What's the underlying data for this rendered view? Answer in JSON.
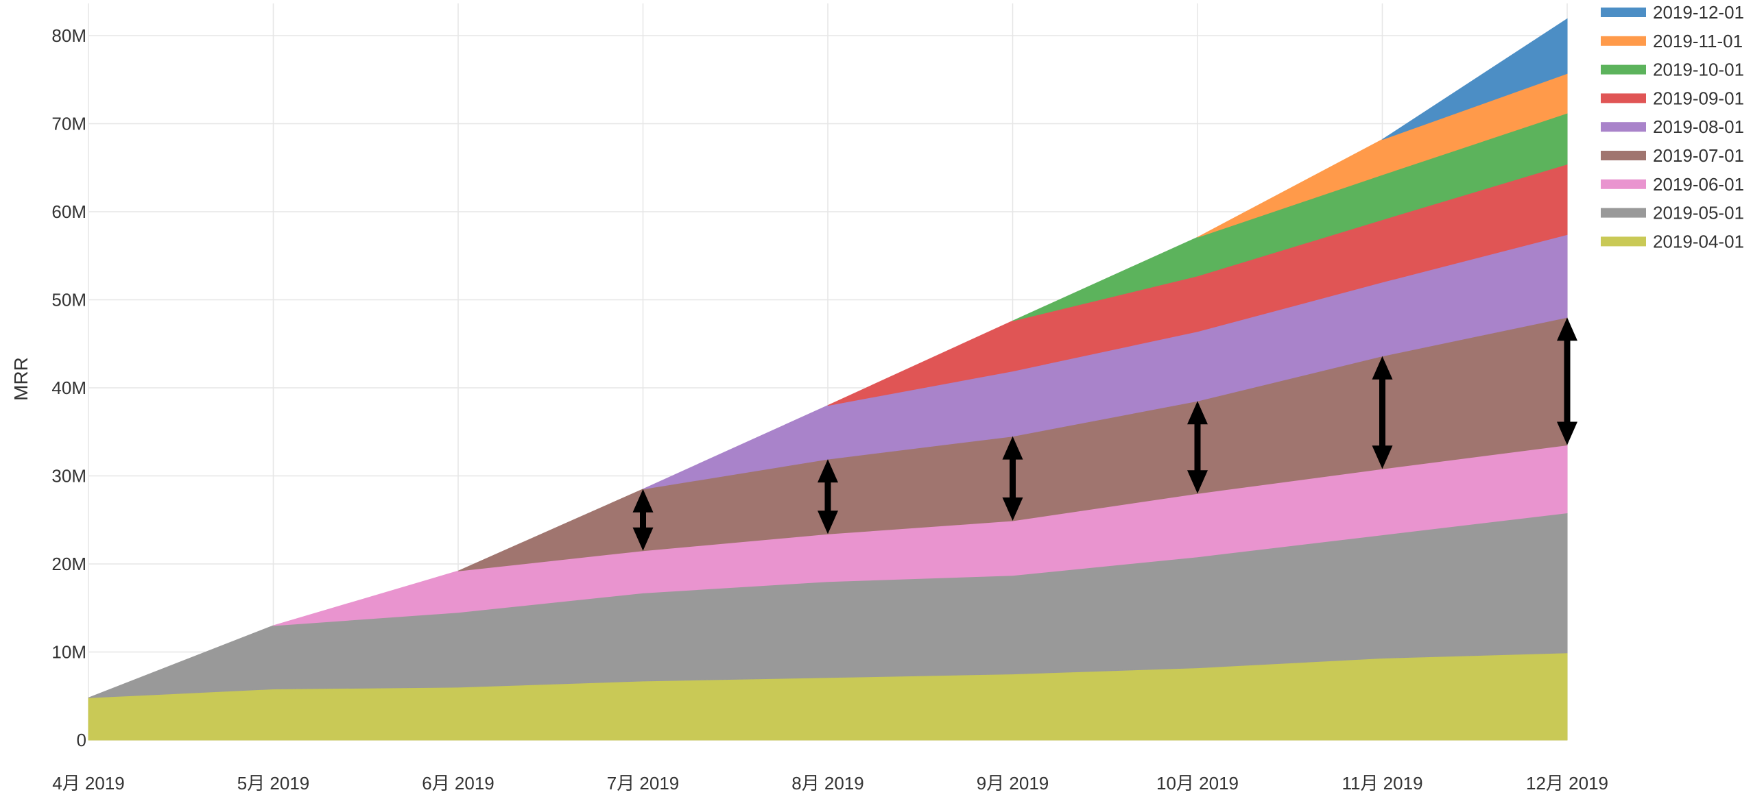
{
  "chart_data": {
    "type": "area",
    "stacked": true,
    "ylabel": "MRR",
    "xlabel": "",
    "x": [
      "4月 2019",
      "5月 2019",
      "6月 2019",
      "7月 2019",
      "8月 2019",
      "9月 2019",
      "10月 2019",
      "11月 2019",
      "12月 2019"
    ],
    "yticks": [
      "0",
      "10M",
      "20M",
      "30M",
      "40M",
      "50M",
      "60M",
      "70M",
      "80M"
    ],
    "ylim": [
      0,
      83000000
    ],
    "grid": true,
    "legend_position": "top-right",
    "series": [
      {
        "name": "2019-04-01",
        "color": "#c9c956",
        "values": [
          4800000,
          5800000,
          6000000,
          6700000,
          7100000,
          7500000,
          8200000,
          9300000,
          9900000
        ]
      },
      {
        "name": "2019-05-01",
        "color": "#999999",
        "values": [
          null,
          7200000,
          8500000,
          10000000,
          10900000,
          11200000,
          12600000,
          14000000,
          15900000
        ]
      },
      {
        "name": "2019-06-01",
        "color": "#e994cf",
        "values": [
          null,
          null,
          4700000,
          4800000,
          5400000,
          6200000,
          7200000,
          7500000,
          7700000
        ]
      },
      {
        "name": "2019-07-01",
        "color": "#a0756f",
        "values": [
          null,
          null,
          null,
          7000000,
          8500000,
          9600000,
          10500000,
          12800000,
          14500000
        ]
      },
      {
        "name": "2019-08-01",
        "color": "#a983ca",
        "values": [
          null,
          null,
          null,
          null,
          6100000,
          7400000,
          7900000,
          8400000,
          9400000
        ]
      },
      {
        "name": "2019-09-01",
        "color": "#e05555",
        "values": [
          null,
          null,
          null,
          null,
          null,
          5700000,
          6300000,
          7100000,
          8000000
        ]
      },
      {
        "name": "2019-10-01",
        "color": "#5cb35c",
        "values": [
          null,
          null,
          null,
          null,
          null,
          null,
          4400000,
          5100000,
          5800000
        ]
      },
      {
        "name": "2019-11-01",
        "color": "#ff9a4a",
        "values": [
          null,
          null,
          null,
          null,
          null,
          null,
          null,
          4000000,
          4500000
        ]
      },
      {
        "name": "2019-12-01",
        "color": "#4c8ec5",
        "values": [
          null,
          null,
          null,
          null,
          null,
          null,
          null,
          null,
          6200000
        ]
      }
    ],
    "legend_order": [
      "2019-12-01",
      "2019-11-01",
      "2019-10-01",
      "2019-09-01",
      "2019-08-01",
      "2019-07-01",
      "2019-06-01",
      "2019-05-01",
      "2019-04-01"
    ],
    "annotations": {
      "type": "double-arrow",
      "color": "#000000",
      "highlighted_series": "2019-07-01"
    }
  }
}
